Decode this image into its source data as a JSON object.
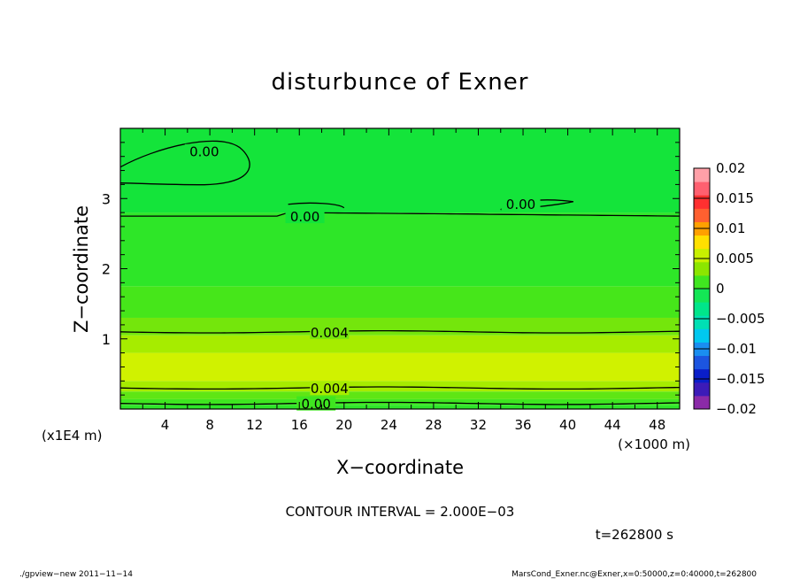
{
  "chart_data": {
    "type": "heatmap",
    "title": "disturbunce of Exner",
    "xlabel": "X−coordinate",
    "ylabel": "Z−coordinate",
    "x_unit": "(×1000 m)",
    "y_unit": "(x1E4 m)",
    "xlim": [
      0,
      50
    ],
    "ylim": [
      0,
      4
    ],
    "x_ticks": [
      4,
      8,
      12,
      16,
      20,
      24,
      28,
      32,
      36,
      40,
      44,
      48
    ],
    "y_ticks": [
      1,
      2,
      3
    ],
    "colorbar": {
      "ticks": [
        {
          "value": 0.02,
          "label": "0.02"
        },
        {
          "value": 0.015,
          "label": "0.015"
        },
        {
          "value": 0.01,
          "label": "0.01"
        },
        {
          "value": 0.005,
          "label": "0.005"
        },
        {
          "value": 0,
          "label": "0"
        },
        {
          "value": -0.005,
          "label": "−0.005"
        },
        {
          "value": -0.01,
          "label": "−0.01"
        },
        {
          "value": -0.015,
          "label": "−0.015"
        },
        {
          "value": -0.02,
          "label": "−0.02"
        }
      ],
      "colors": [
        "#8b2aa8",
        "#3c1bb8",
        "#0a1ec9",
        "#1c55e0",
        "#1a8ef0",
        "#00c8f0",
        "#00e0b4",
        "#00e68a",
        "#14e655",
        "#40e620",
        "#8ce600",
        "#c8f000",
        "#ffe000",
        "#ffa000",
        "#ff6030",
        "#ff3030",
        "#ff6070",
        "#ffa0a8"
      ]
    },
    "bands": [
      {
        "z0": 0.0,
        "z1": 0.06,
        "color": "#2fe62a"
      },
      {
        "z0": 0.06,
        "z1": 0.14,
        "color": "#3fe620"
      },
      {
        "z0": 0.14,
        "z1": 0.25,
        "color": "#5fe614"
      },
      {
        "z0": 0.25,
        "z1": 0.4,
        "color": "#a6ec00"
      },
      {
        "z0": 0.4,
        "z1": 0.8,
        "color": "#d0f200"
      },
      {
        "z0": 0.8,
        "z1": 1.05,
        "color": "#a6ec00"
      },
      {
        "z0": 1.05,
        "z1": 1.3,
        "color": "#74e60c"
      },
      {
        "z0": 1.3,
        "z1": 1.75,
        "color": "#46e61a"
      },
      {
        "z0": 1.75,
        "z1": 2.8,
        "color": "#2ee628"
      },
      {
        "z0": 2.8,
        "z1": 4.0,
        "color": "#14e43a"
      }
    ],
    "contours": [
      {
        "z": 1.1,
        "label": "0.004",
        "label_x": 18.7
      },
      {
        "z": 0.3,
        "label": "0.004",
        "label_x": 18.7
      },
      {
        "z": 0.08,
        "label": "0.00",
        "label_x": 17.5
      },
      {
        "z": 2.75,
        "label": "0.00",
        "label_x": 16.5
      },
      {
        "z": 3.6,
        "label": "0.00",
        "label_x": 7.5
      },
      {
        "z": 2.88,
        "label": "0.00",
        "label_x": 35.8
      }
    ],
    "contour_interval_text": "CONTOUR INTERVAL = 2.000E−03"
  },
  "time_text": "t=262800 s",
  "footer_left": "./gpview−new  2011−11−14",
  "footer_right": "MarsCond_Exner.nc@Exner,x=0:50000,z=0:40000,t=262800"
}
